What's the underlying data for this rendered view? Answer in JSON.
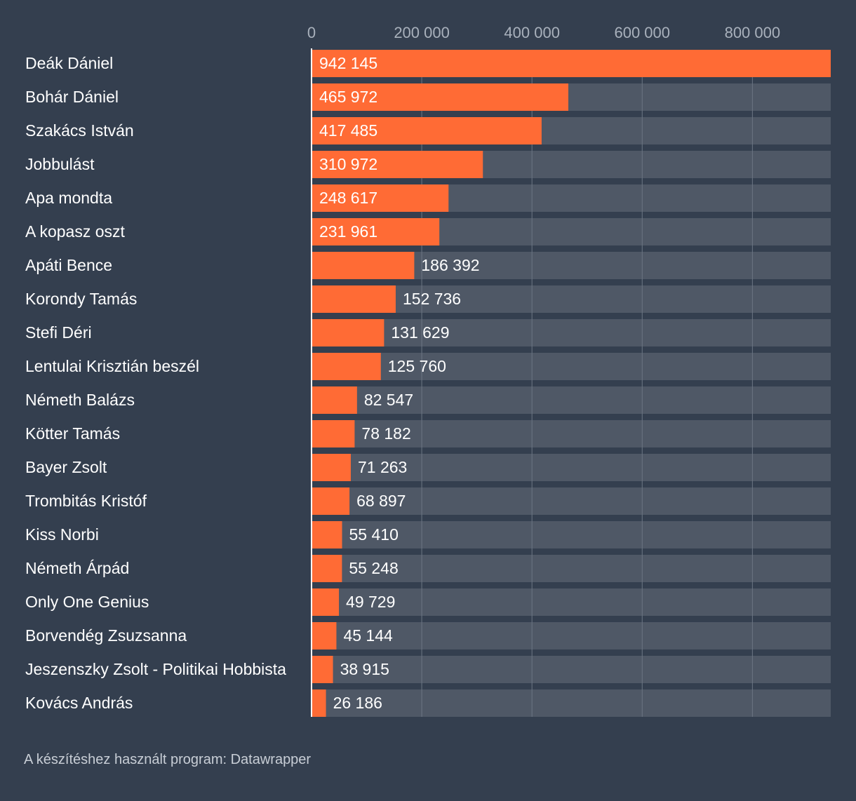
{
  "chart_data": {
    "type": "bar",
    "orientation": "horizontal",
    "categories": [
      "Deák Dániel",
      "Bohár Dániel",
      "Szakács István",
      "Jobbulást",
      "Apa mondta",
      "A kopasz oszt",
      "Apáti Bence",
      "Korondy Tamás",
      "Stefi Déri",
      "Lentulai Krisztián beszél",
      "Németh Balázs",
      "Kötter Tamás",
      "Bayer Zsolt",
      "Trombitás Kristóf",
      "Kiss Norbi",
      "Németh Árpád",
      "Only One Genius",
      "Borvendég Zsuzsanna",
      "Jeszenszky Zsolt - Politikai Hobbista",
      "Kovács András"
    ],
    "values": [
      942145,
      465972,
      417485,
      310972,
      248617,
      231961,
      186392,
      152736,
      131629,
      125760,
      82547,
      78182,
      71263,
      68897,
      55410,
      55248,
      49729,
      45144,
      38915,
      26186
    ],
    "value_labels": [
      "942 145",
      "465 972",
      "417 485",
      "310 972",
      "248 617",
      "231 961",
      "186 392",
      "152 736",
      "131 629",
      "125 760",
      "82 547",
      "78 182",
      "71 263",
      "68 897",
      "55 410",
      "55 248",
      "49 729",
      "45 144",
      "38 915",
      "26 186"
    ],
    "xlim": [
      0,
      942145
    ],
    "xticks": [
      0,
      200000,
      400000,
      600000,
      800000
    ],
    "xtick_labels": [
      "0",
      "200 000",
      "400 000",
      "600 000",
      "800 000"
    ],
    "grid": true,
    "colors": {
      "bar": "#ff6b35",
      "track": "#4f5866",
      "grid": "#6c7684",
      "background": "#343f4f"
    }
  },
  "footer": {
    "source": "A készítéshez használt program: Datawrapper"
  }
}
